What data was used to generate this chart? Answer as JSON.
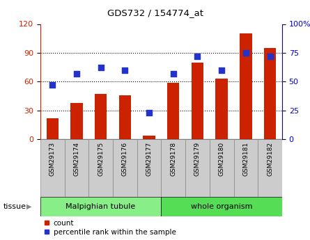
{
  "title": "GDS732 / 154774_at",
  "categories": [
    "GSM29173",
    "GSM29174",
    "GSM29175",
    "GSM29176",
    "GSM29177",
    "GSM29178",
    "GSM29179",
    "GSM29180",
    "GSM29181",
    "GSM29182"
  ],
  "counts": [
    22,
    38,
    47,
    46,
    4,
    59,
    80,
    63,
    110,
    95
  ],
  "percentiles": [
    47,
    57,
    62,
    60,
    23,
    57,
    72,
    60,
    75,
    72
  ],
  "ylim_left": [
    0,
    120
  ],
  "ylim_right": [
    0,
    100
  ],
  "yticks_left": [
    0,
    30,
    60,
    90,
    120
  ],
  "yticks_right": [
    0,
    25,
    50,
    75,
    100
  ],
  "bar_color": "#cc2200",
  "dot_color": "#2233cc",
  "tissue_groups": [
    {
      "label": "Malpighian tubule",
      "start": 0,
      "end": 5,
      "color": "#88ee88"
    },
    {
      "label": "whole organism",
      "start": 5,
      "end": 10,
      "color": "#55dd55"
    }
  ],
  "tissue_label": "tissue",
  "legend_count_label": "count",
  "legend_pct_label": "percentile rank within the sample",
  "bar_color_left_axis": "#cc2200",
  "dot_color_right_axis": "#0000cc",
  "bar_width": 0.5,
  "dot_size": 35,
  "xlabel_box_color": "#cccccc",
  "xlabel_box_edgecolor": "#888888"
}
